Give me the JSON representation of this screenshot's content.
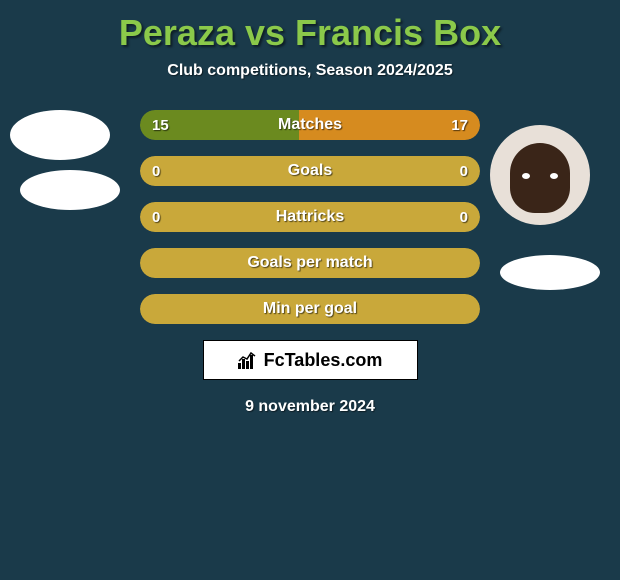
{
  "title": "Peraza vs Francis Box",
  "subtitle": "Club competitions, Season 2024/2025",
  "date": "9 november 2024",
  "logo_text": "FcTables.com",
  "colors": {
    "background": "#1a3a4a",
    "title": "#8bc94a",
    "text": "#ffffff",
    "left_fill": "#6b8a1f",
    "right_fill": "#d68b1f",
    "empty_fill": "#c9a83a",
    "logo_bg": "#ffffff"
  },
  "bars": [
    {
      "label": "Matches",
      "left_value": "15",
      "right_value": "17",
      "left_pct": 46.9,
      "right_pct": 53.1,
      "left_color": "#6b8a1f",
      "right_color": "#d68b1f",
      "show_values": true
    },
    {
      "label": "Goals",
      "left_value": "0",
      "right_value": "0",
      "left_pct": 50,
      "right_pct": 50,
      "left_color": "#c9a83a",
      "right_color": "#c9a83a",
      "show_values": true
    },
    {
      "label": "Hattricks",
      "left_value": "0",
      "right_value": "0",
      "left_pct": 50,
      "right_pct": 50,
      "left_color": "#c9a83a",
      "right_color": "#c9a83a",
      "show_values": true
    },
    {
      "label": "Goals per match",
      "left_value": "",
      "right_value": "",
      "left_pct": 50,
      "right_pct": 50,
      "left_color": "#c9a83a",
      "right_color": "#c9a83a",
      "show_values": false
    },
    {
      "label": "Min per goal",
      "left_value": "",
      "right_value": "",
      "left_pct": 50,
      "right_pct": 50,
      "left_color": "#c9a83a",
      "right_color": "#c9a83a",
      "show_values": false
    }
  ]
}
